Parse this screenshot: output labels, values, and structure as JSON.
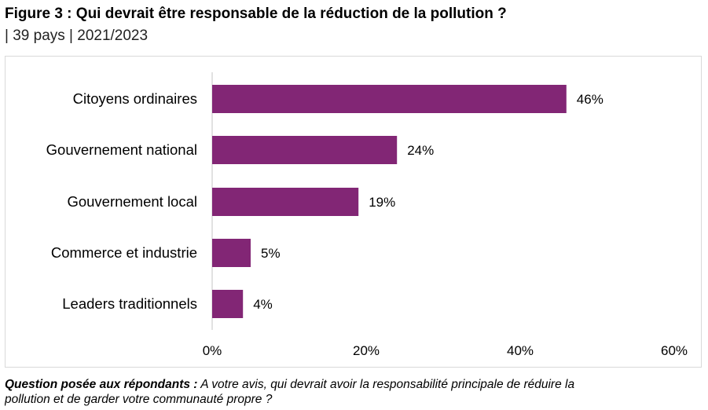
{
  "header": {
    "title": "Figure 3 : Qui devrait être responsable de la réduction de la pollution ?",
    "subtitle": "| 39 pays | 2021/2023"
  },
  "colors": {
    "bar": "#822675",
    "axis": "#d9d9d9",
    "frame": "#d9d9d9"
  },
  "chart_data": {
    "type": "bar",
    "orientation": "horizontal",
    "categories": [
      "Citoyens ordinaires",
      "Gouvernement national",
      "Gouvernement local",
      "Commerce et industrie",
      "Leaders traditionnels"
    ],
    "values": [
      46,
      24,
      19,
      5,
      4
    ],
    "value_labels": [
      "46%",
      "24%",
      "19%",
      "5%",
      "4%"
    ],
    "xlim": [
      0,
      60
    ],
    "x_ticks": [
      0,
      20,
      40,
      60
    ],
    "x_tick_labels": [
      "0%",
      "20%",
      "40%",
      "60%"
    ],
    "grid": false,
    "legend": "none"
  },
  "footnote": {
    "label": "Question posée aux répondants :",
    "line1": "A votre avis, qui devrait avoir la responsabilité principale de réduire la",
    "line2": "pollution et de garder votre communauté propre ?"
  }
}
